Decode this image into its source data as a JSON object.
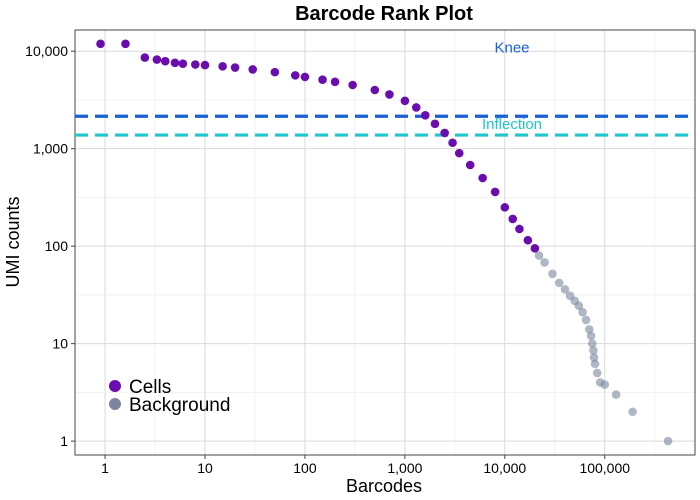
{
  "chart_data": {
    "type": "scatter",
    "title": "Barcode Rank Plot",
    "xlabel": "Barcodes",
    "ylabel": "UMI counts",
    "xscale": "log",
    "yscale": "log",
    "xlim": [
      0.5,
      800000
    ],
    "ylim": [
      0.72,
      16500
    ],
    "x_ticks": [
      {
        "value": 1,
        "label": "1"
      },
      {
        "value": 10,
        "label": "10"
      },
      {
        "value": 100,
        "label": "100"
      },
      {
        "value": 1000,
        "label": "1,000"
      },
      {
        "value": 10000,
        "label": "10,000"
      },
      {
        "value": 100000,
        "label": "100,000"
      }
    ],
    "y_ticks": [
      {
        "value": 1,
        "label": "1"
      },
      {
        "value": 10,
        "label": "10"
      },
      {
        "value": 100,
        "label": "100"
      },
      {
        "value": 1000,
        "label": "1,000"
      },
      {
        "value": 10000,
        "label": "10,000"
      }
    ],
    "grid": true,
    "legend_position": "bottom-left",
    "series": [
      {
        "name": "Cells",
        "color": "#6a0dad",
        "points": [
          [
            0.9,
            11900
          ],
          [
            1.6,
            11900
          ],
          [
            2.5,
            8600
          ],
          [
            3.3,
            8200
          ],
          [
            4,
            7900
          ],
          [
            5,
            7600
          ],
          [
            6,
            7450
          ],
          [
            8,
            7300
          ],
          [
            10,
            7200
          ],
          [
            15,
            7000
          ],
          [
            20,
            6800
          ],
          [
            30,
            6500
          ],
          [
            50,
            6100
          ],
          [
            80,
            5650
          ],
          [
            100,
            5450
          ],
          [
            150,
            5100
          ],
          [
            200,
            4850
          ],
          [
            300,
            4500
          ],
          [
            500,
            4000
          ],
          [
            700,
            3600
          ],
          [
            1000,
            3100
          ],
          [
            1300,
            2650
          ],
          [
            1600,
            2200
          ],
          [
            2000,
            1800
          ],
          [
            2500,
            1450
          ],
          [
            3000,
            1150
          ],
          [
            3500,
            900
          ],
          [
            4500,
            680
          ],
          [
            6000,
            500
          ],
          [
            8000,
            360
          ],
          [
            10000,
            250
          ],
          [
            12000,
            190
          ],
          [
            14000,
            150
          ],
          [
            17000,
            115
          ],
          [
            20000,
            95
          ]
        ]
      },
      {
        "name": "Background",
        "color": "#7a879c",
        "points": [
          [
            22000,
            80
          ],
          [
            25000,
            68
          ],
          [
            30000,
            52
          ],
          [
            35000,
            42
          ],
          [
            40000,
            36
          ],
          [
            45000,
            31
          ],
          [
            50000,
            27.5
          ],
          [
            55000,
            24.5
          ],
          [
            60000,
            21
          ],
          [
            65000,
            17.5
          ],
          [
            70000,
            14
          ],
          [
            73000,
            12
          ],
          [
            75000,
            10
          ],
          [
            77000,
            8.5
          ],
          [
            78000,
            7.2
          ],
          [
            80000,
            6.2
          ],
          [
            84000,
            5
          ],
          [
            90000,
            4
          ],
          [
            100000,
            3.8
          ],
          [
            130000,
            3
          ],
          [
            190000,
            2
          ],
          [
            430000,
            1
          ]
        ]
      }
    ],
    "reference_lines": [
      {
        "label": "Knee",
        "y": 2150,
        "color": "#1a5fd6"
      },
      {
        "label": "Inflection",
        "y": 1380,
        "color": "#1fc6cc"
      }
    ]
  }
}
